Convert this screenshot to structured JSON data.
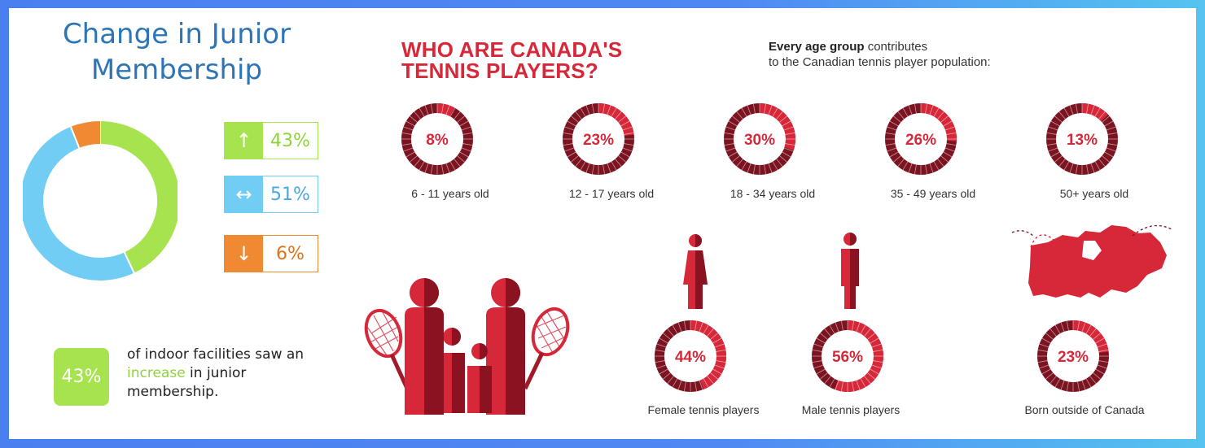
{
  "left_panel": {
    "title": "Change in Junior Membership",
    "stats": [
      {
        "label": "43%",
        "arrow": "↑",
        "color": "#a6e34f",
        "border": "#a6e34f",
        "text_color": "#8fd33c"
      },
      {
        "label": "51%",
        "arrow": "↔",
        "color": "#72cdf4",
        "border": "#72cdf4",
        "text_color": "#4aa8e0"
      },
      {
        "label": "6%",
        "arrow": "↓",
        "color": "#f08a32",
        "border": "#f08a32",
        "text_color": "#e0731a"
      }
    ],
    "badge_value": "43%",
    "badge_text_pre": "of indoor facilities saw an ",
    "badge_text_highlight": "increase",
    "badge_text_post": " in junior membership."
  },
  "right_panel": {
    "headline_line1": "WHO ARE CANADA'S",
    "headline_line2": "TENNIS PLAYERS?",
    "sub_bold": "Every age group",
    "sub_rest_line1": " contributes",
    "sub_line2": "to the Canadian tennis player population:",
    "colors": {
      "dark": "#7b1420",
      "red": "#d7283a"
    }
  },
  "chart_data": [
    {
      "type": "pie",
      "title": "Change in Junior Membership",
      "categories": [
        "↑",
        "↔",
        "↓"
      ],
      "values": [
        43,
        51,
        6
      ],
      "colors": [
        "#a6e34f",
        "#72cdf4",
        "#f08a32"
      ],
      "donut": true
    },
    {
      "type": "pie",
      "categories": [
        "6 - 11 years old",
        "12 - 17 years old",
        "18 - 34 years old",
        "35 - 49 years old",
        "50+ years old"
      ],
      "values": [
        8,
        23,
        30,
        26,
        13
      ],
      "labels": [
        "8%",
        "23%",
        "30%",
        "26%",
        "13%"
      ]
    },
    {
      "type": "pie",
      "categories": [
        "Female tennis players",
        "Male tennis players"
      ],
      "values": [
        44,
        56
      ],
      "labels": [
        "44%",
        "56%"
      ]
    },
    {
      "type": "pie",
      "categories": [
        "Born outside of Canada"
      ],
      "values": [
        23
      ],
      "labels": [
        "23%"
      ]
    }
  ]
}
